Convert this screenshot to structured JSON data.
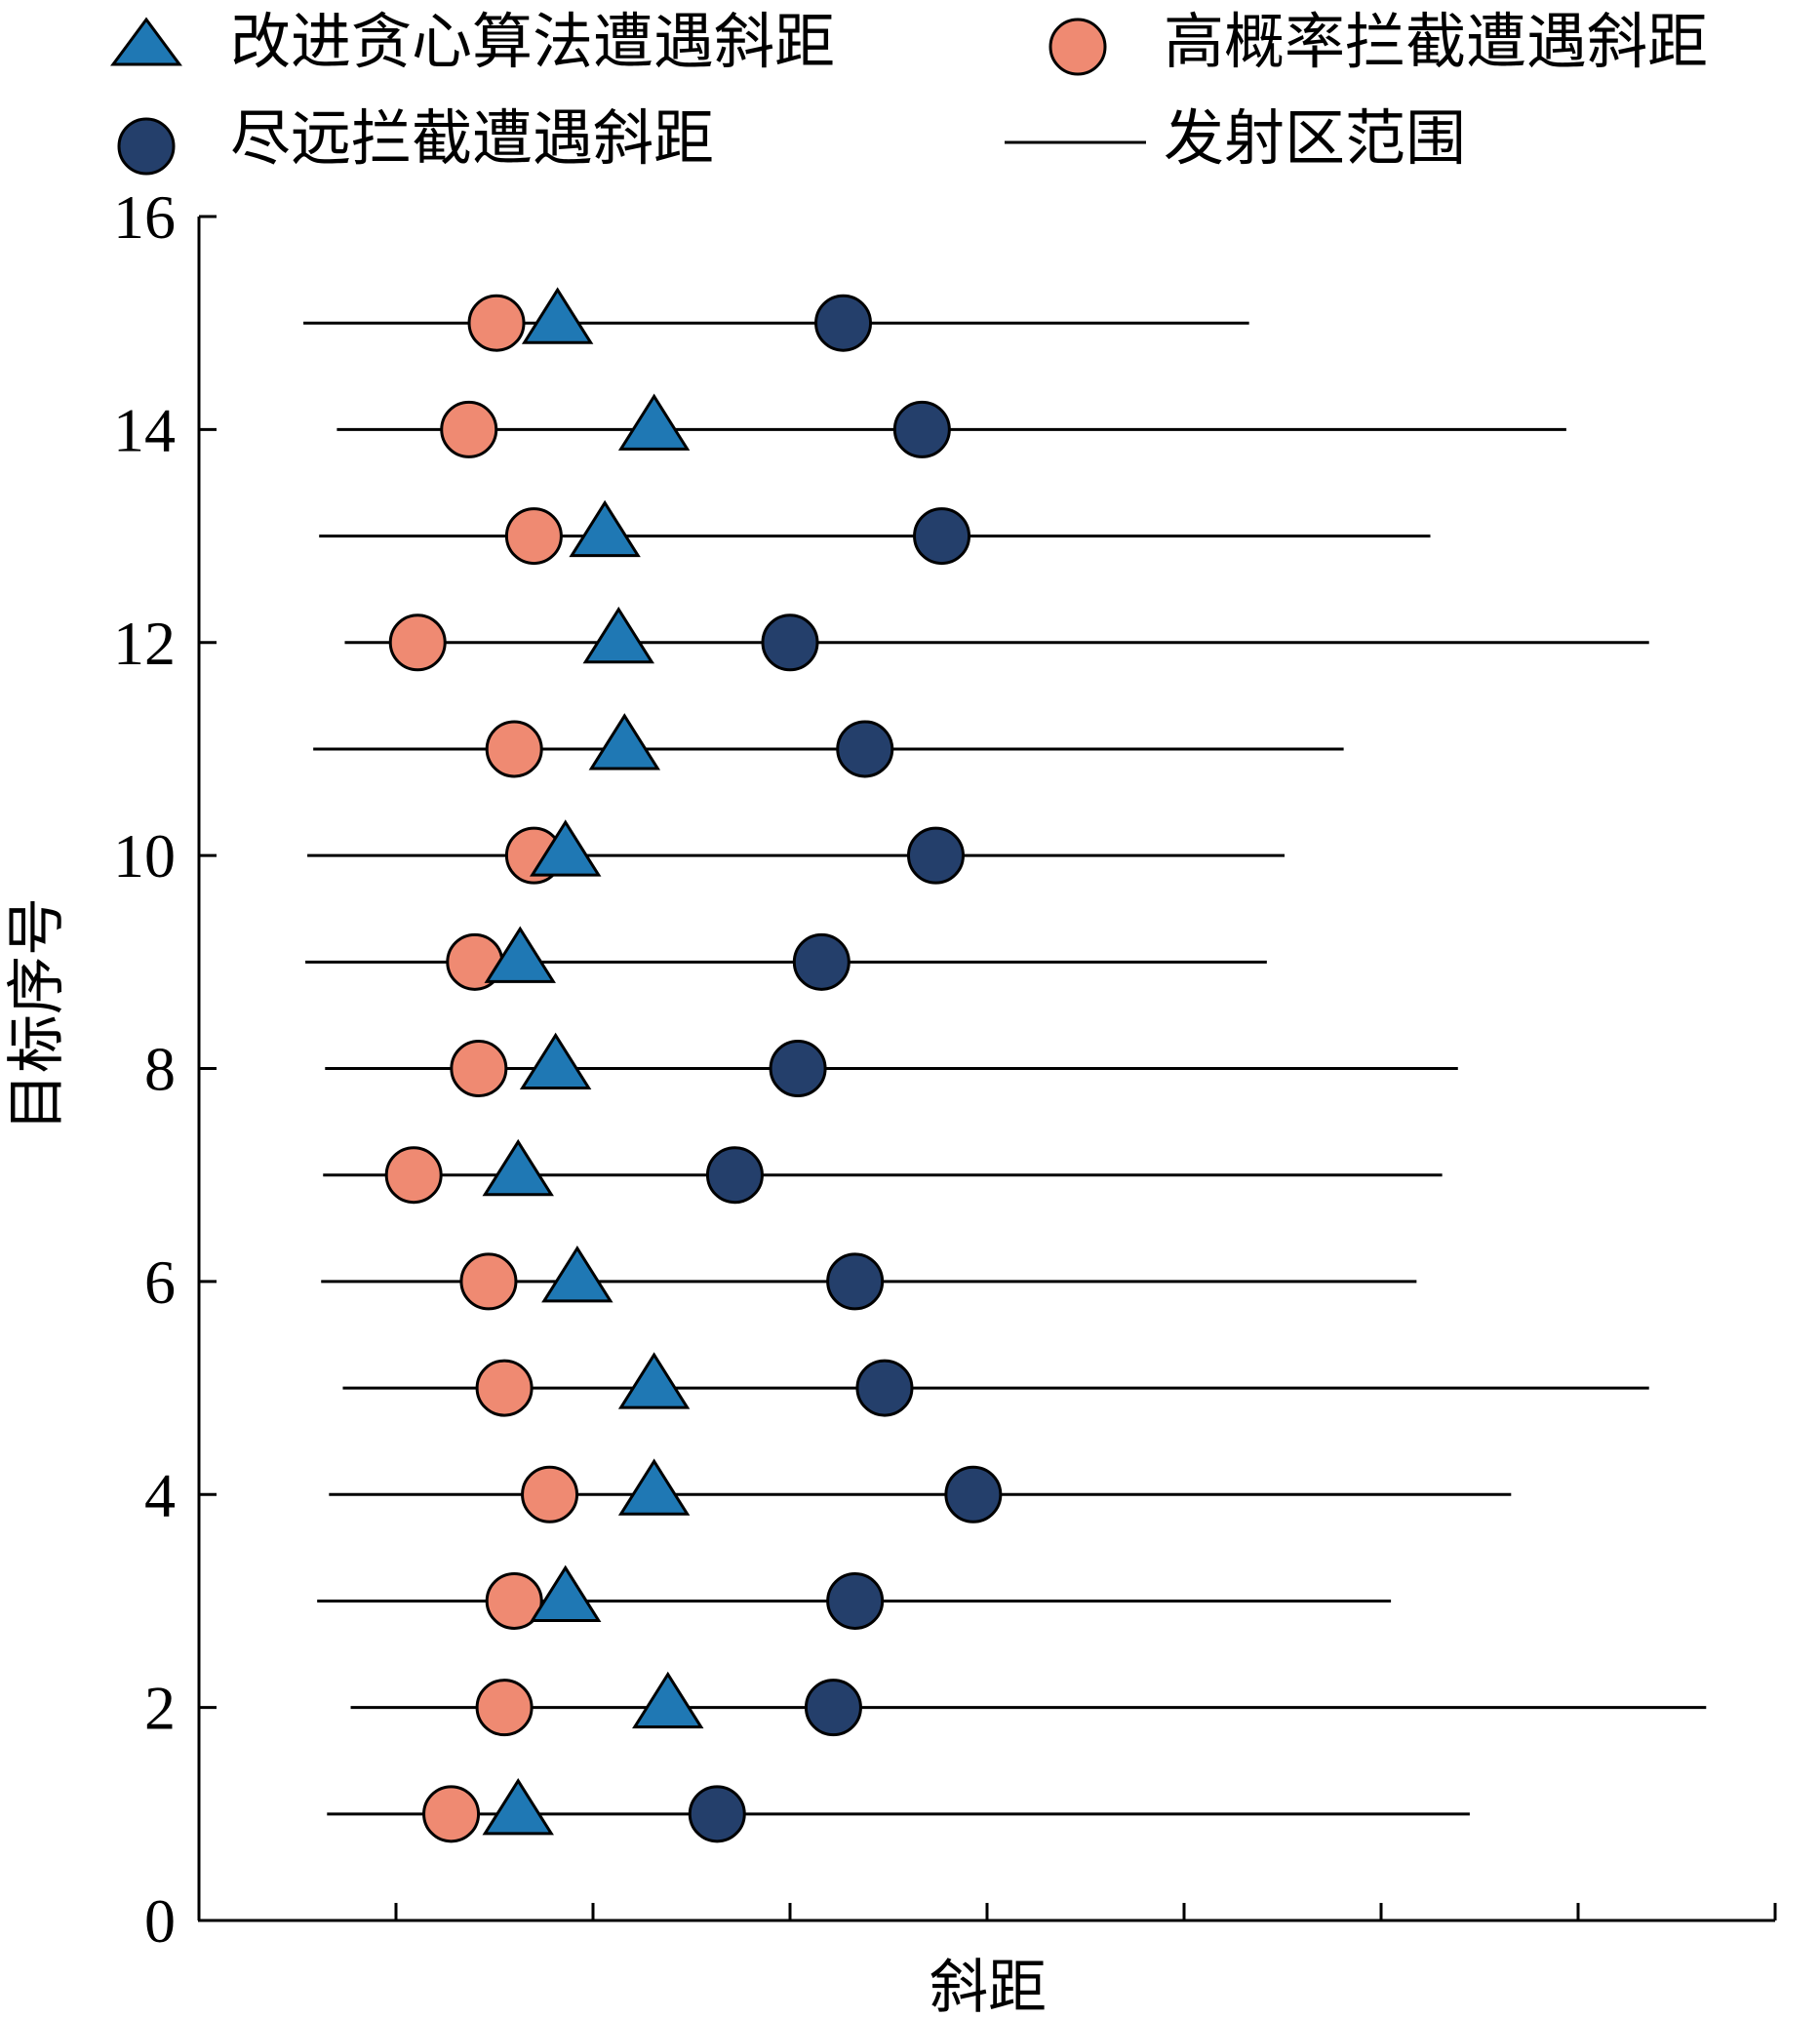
{
  "chart_data": {
    "type": "scatter",
    "title": "",
    "xlabel": "斜距",
    "ylabel": "目标序号",
    "ylim": [
      0,
      16
    ],
    "yticks": [
      0,
      2,
      4,
      6,
      8,
      10,
      12,
      14,
      16
    ],
    "xlim": [
      0,
      8
    ],
    "xticks": [
      1,
      2,
      3,
      4,
      5,
      6,
      7,
      8
    ],
    "legend": [
      {
        "key": "improved",
        "label": "改进贪心算法遭遇斜距",
        "marker": "triangle",
        "color": "#1f78b4"
      },
      {
        "key": "high_prob",
        "label": "高概率拦截遭遇斜距",
        "marker": "circle",
        "color": "#ef8a72"
      },
      {
        "key": "far",
        "label": "尽远拦截遭遇斜距",
        "marker": "circle",
        "color": "#243f6b"
      },
      {
        "key": "range",
        "label": "发射区范围",
        "marker": "line",
        "color": "#000000"
      }
    ],
    "legend_position": "top",
    "targets": [
      1,
      2,
      3,
      4,
      5,
      6,
      7,
      8,
      9,
      10,
      11,
      12,
      13,
      14,
      15
    ],
    "launch_zone": [
      [
        0.65,
        6.45
      ],
      [
        0.77,
        7.65
      ],
      [
        0.6,
        6.05
      ],
      [
        0.66,
        6.66
      ],
      [
        0.73,
        7.36
      ],
      [
        0.62,
        6.18
      ],
      [
        0.63,
        6.31
      ],
      [
        0.64,
        6.39
      ],
      [
        0.54,
        5.42
      ],
      [
        0.55,
        5.51
      ],
      [
        0.58,
        5.81
      ],
      [
        0.74,
        7.36
      ],
      [
        0.61,
        6.25
      ],
      [
        0.7,
        6.94
      ],
      [
        0.53,
        5.33
      ]
    ],
    "series": [
      {
        "key": "high_prob",
        "name": "高概率拦截遭遇斜距",
        "values": [
          1.28,
          1.55,
          1.6,
          1.78,
          1.55,
          1.47,
          1.09,
          1.42,
          1.4,
          1.7,
          1.6,
          1.11,
          1.7,
          1.37,
          1.51
        ]
      },
      {
        "key": "improved",
        "name": "改进贪心算法遭遇斜距",
        "values": [
          1.62,
          2.38,
          1.86,
          2.31,
          2.31,
          1.92,
          1.62,
          1.81,
          1.63,
          1.86,
          2.16,
          2.13,
          2.06,
          2.31,
          1.82
        ]
      },
      {
        "key": "far",
        "name": "尽远拦截遭遇斜距",
        "values": [
          2.63,
          3.22,
          3.33,
          3.93,
          3.48,
          3.33,
          2.72,
          3.04,
          3.16,
          3.74,
          3.38,
          3.0,
          3.77,
          3.67,
          3.27
        ]
      }
    ]
  }
}
